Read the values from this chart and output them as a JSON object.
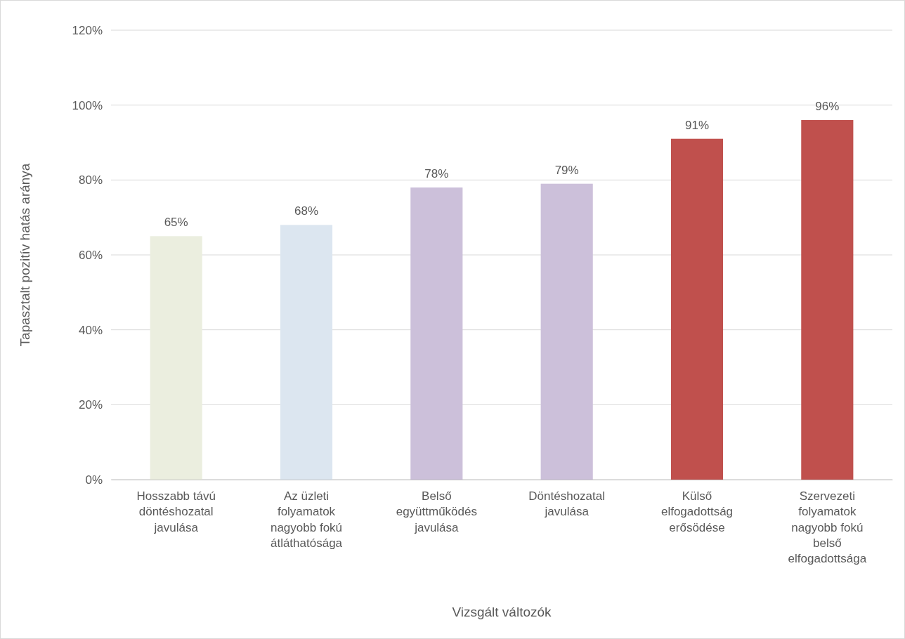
{
  "chart_data": {
    "type": "bar",
    "xlabel": "Vizsgált változók",
    "ylabel": "Tapasztalt pozitív hatás aránya",
    "categories": [
      "Hosszabb távú döntéshozatal javulása",
      "Az üzleti folyamatok nagyobb fokú átláthatósága",
      "Belső együttműködés javulása",
      "Döntéshozatal javulása",
      "Külső elfogadottság erősödése",
      "Szervezeti folyamatok nagyobb fokú belső elfogadottsága"
    ],
    "values": [
      65,
      68,
      78,
      79,
      91,
      96
    ],
    "colors": [
      "#ebeedf",
      "#dce6f0",
      "#ccc0da",
      "#ccc0da",
      "#c0504d",
      "#c0504d"
    ],
    "value_labels": [
      "65%",
      "68%",
      "78%",
      "79%",
      "91%",
      "96%"
    ],
    "ylim": [
      0,
      120
    ],
    "yticks": [
      {
        "value": 0,
        "label": "0%"
      },
      {
        "value": 20,
        "label": "20%"
      },
      {
        "value": 40,
        "label": "40%"
      },
      {
        "value": 60,
        "label": "60%"
      },
      {
        "value": 80,
        "label": "80%"
      },
      {
        "value": 100,
        "label": "100%"
      },
      {
        "value": 120,
        "label": "120%"
      }
    ],
    "grid": "y"
  }
}
